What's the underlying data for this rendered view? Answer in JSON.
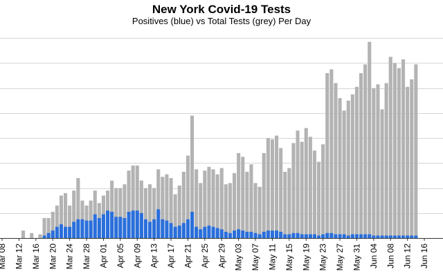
{
  "chart_data": {
    "type": "bar",
    "title": "New York Covid-19 Tests",
    "subtitle": "Positives (blue) vs Total Tests (grey) Per Day",
    "xlabel": "",
    "ylabel": "",
    "grid": true,
    "colors": {
      "total": "#b3b3b3",
      "positive": "#2a6fdb",
      "grid": "#d6d6d6",
      "axis": "#333333"
    },
    "tick_labels": [
      "Mar 08",
      "Mar 12",
      "Mar 16",
      "Mar 20",
      "Mar 24",
      "Mar 28",
      "Apr 01",
      "Apr 05",
      "Apr 09",
      "Apr 13",
      "Apr 17",
      "Apr 21",
      "Apr 25",
      "Apr 29",
      "May 03",
      "May 07",
      "May 11",
      "May 15",
      "May 19",
      "May 23",
      "May 27",
      "May 31",
      "Jun 04",
      "Jun 08",
      "Jun 12",
      "Jun 16"
    ],
    "start_label": "Mar 08",
    "ylim": [
      0,
      8.2
    ],
    "series": [
      {
        "values": [
          0,
          0,
          0,
          0,
          0,
          0.3,
          0,
          0.2,
          0,
          0.15,
          0.8,
          0.8,
          1.05,
          1.3,
          1.7,
          1.8,
          1.3,
          1.9,
          2.4,
          1.5,
          1.3,
          1.5,
          1.9,
          1.4,
          1.7,
          1.9,
          2.3,
          2.0,
          2.0,
          2.15,
          2.7,
          2.9,
          2.9,
          2.3,
          2.0,
          2.15,
          2.0,
          2.75,
          2.45,
          2.55,
          2.4,
          1.75,
          2.1,
          2.65,
          3.3,
          4.9,
          2.75,
          2.2,
          2.7,
          2.85,
          2.75,
          2.55,
          2.8,
          2.15,
          2.2,
          2.6,
          3.4,
          3.25,
          2.65,
          2.95,
          2.2,
          2.05,
          3.4,
          4.0,
          3.95,
          4.1,
          3.6,
          2.65,
          2.8,
          3.8,
          4.3,
          3.85,
          4.4,
          4.05,
          3.5,
          3.05,
          3.75,
          6.6,
          6.75,
          6.2,
          5.6,
          5.1,
          5.5,
          5.75,
          6.05,
          6.6,
          6.95,
          7.85,
          6.0,
          6.15,
          5.15,
          6.2,
          7.25,
          7.0,
          6.8,
          7.15,
          6.05,
          6.35,
          6.95
        ]
      },
      {
        "values": [
          0,
          0,
          0,
          0,
          0,
          0,
          0,
          0,
          0,
          0,
          0.1,
          0.2,
          0.3,
          0.45,
          0.55,
          0.45,
          0.45,
          0.65,
          0.75,
          0.75,
          0.7,
          0.7,
          0.95,
          0.8,
          0.95,
          1.1,
          1.05,
          0.85,
          0.85,
          0.8,
          1.05,
          1.1,
          1.1,
          1.0,
          0.75,
          0.65,
          0.75,
          1.15,
          0.75,
          0.7,
          0.6,
          0.45,
          0.5,
          0.6,
          0.75,
          1.05,
          0.45,
          0.35,
          0.45,
          0.5,
          0.45,
          0.4,
          0.35,
          0.25,
          0.2,
          0.3,
          0.35,
          0.3,
          0.25,
          0.25,
          0.2,
          0.15,
          0.25,
          0.3,
          0.3,
          0.3,
          0.25,
          0.15,
          0.15,
          0.2,
          0.2,
          0.15,
          0.15,
          0.15,
          0.15,
          0.1,
          0.15,
          0.2,
          0.2,
          0.15,
          0.15,
          0.15,
          0.1,
          0.15,
          0.15,
          0.15,
          0.15,
          0.15,
          0.1,
          0.1,
          0.1,
          0.1,
          0.1,
          0.1,
          0.1,
          0.1,
          0.1,
          0.1,
          0.1
        ]
      }
    ]
  }
}
